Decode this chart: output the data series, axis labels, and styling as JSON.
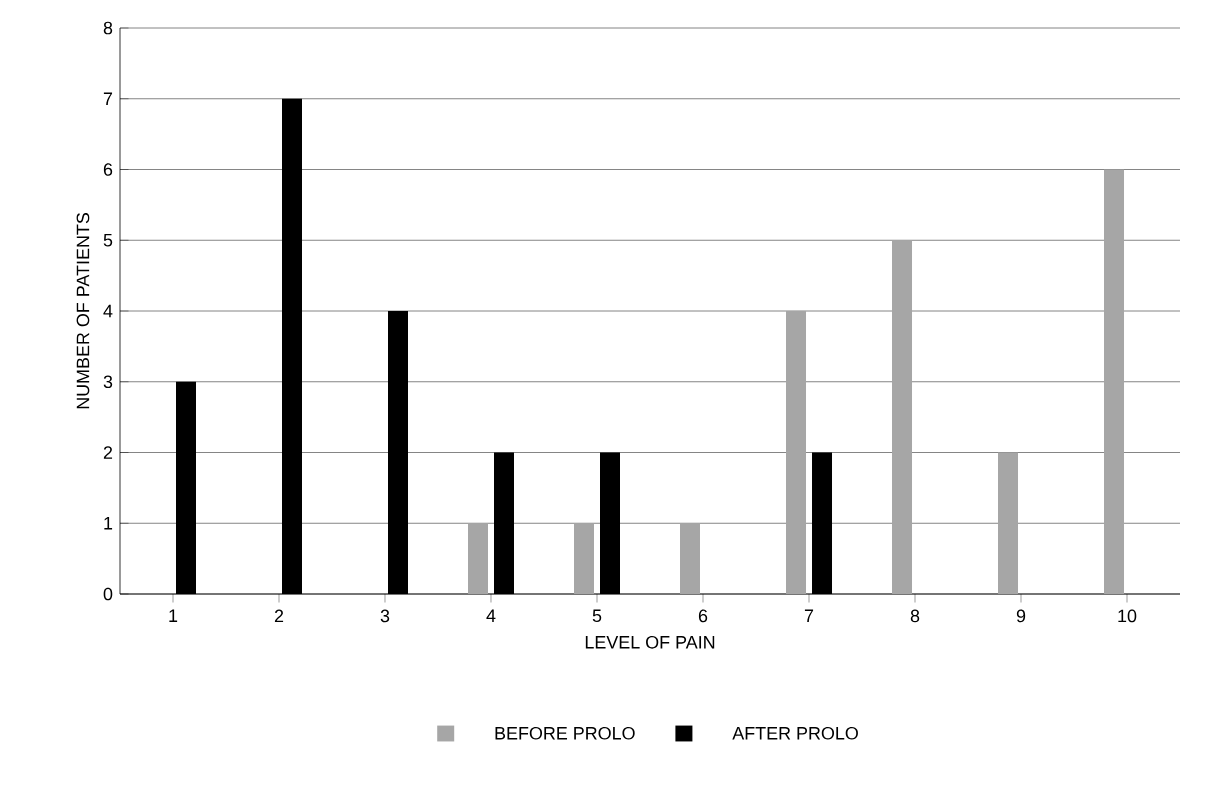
{
  "chart_data": {
    "type": "bar",
    "xlabel": "LEVEL OF PAIN",
    "ylabel": "NUMBER OF PATIENTS",
    "categories": [
      "1",
      "2",
      "3",
      "4",
      "5",
      "6",
      "7",
      "8",
      "9",
      "10"
    ],
    "series": [
      {
        "name": "BEFORE PROLO",
        "color": "#a6a6a6",
        "values": [
          0,
          0,
          0,
          1,
          1,
          1,
          4,
          5,
          2,
          6
        ]
      },
      {
        "name": "AFTER PROLO",
        "color": "#000000",
        "values": [
          3,
          7,
          4,
          2,
          2,
          0,
          2,
          0,
          0,
          0
        ]
      }
    ],
    "ylim": [
      0,
      8
    ],
    "yticks": [
      0,
      1,
      2,
      3,
      4,
      5,
      6,
      7,
      8
    ],
    "grid": "y",
    "legend": "bottom"
  }
}
